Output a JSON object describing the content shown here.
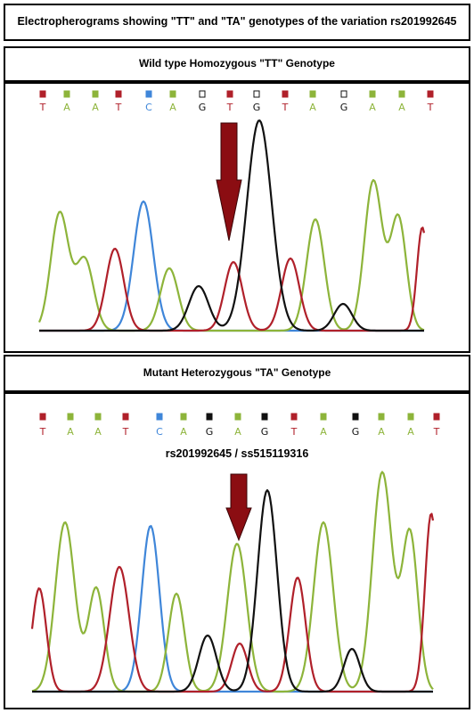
{
  "main_title": "Electropherograms showing \"TT\" and \"TA\" genotypes of the variation rs201992645",
  "panels": [
    {
      "heading": "Wild type Homozygous \"TT\" Genotype",
      "annotation": "",
      "bases": [
        "T",
        "A",
        "A",
        "T",
        "C",
        "A",
        "G",
        "T",
        "G",
        "T",
        "A",
        "G",
        "A",
        "A",
        "T"
      ]
    },
    {
      "heading": "Mutant Heterozygous \"TA\" Genotype",
      "annotation": "rs201992645 / ss515119316",
      "bases": [
        "T",
        "A",
        "A",
        "T",
        "C",
        "A",
        "G",
        "A",
        "G",
        "T",
        "A",
        "G",
        "A",
        "A",
        "T"
      ]
    }
  ],
  "colors": {
    "T": "#b0202a",
    "A": "#8db43a",
    "C": "#3f86d9",
    "G": "#111111",
    "arrow": "#8b0d12",
    "baseline_blue": "#3f86d9"
  }
}
